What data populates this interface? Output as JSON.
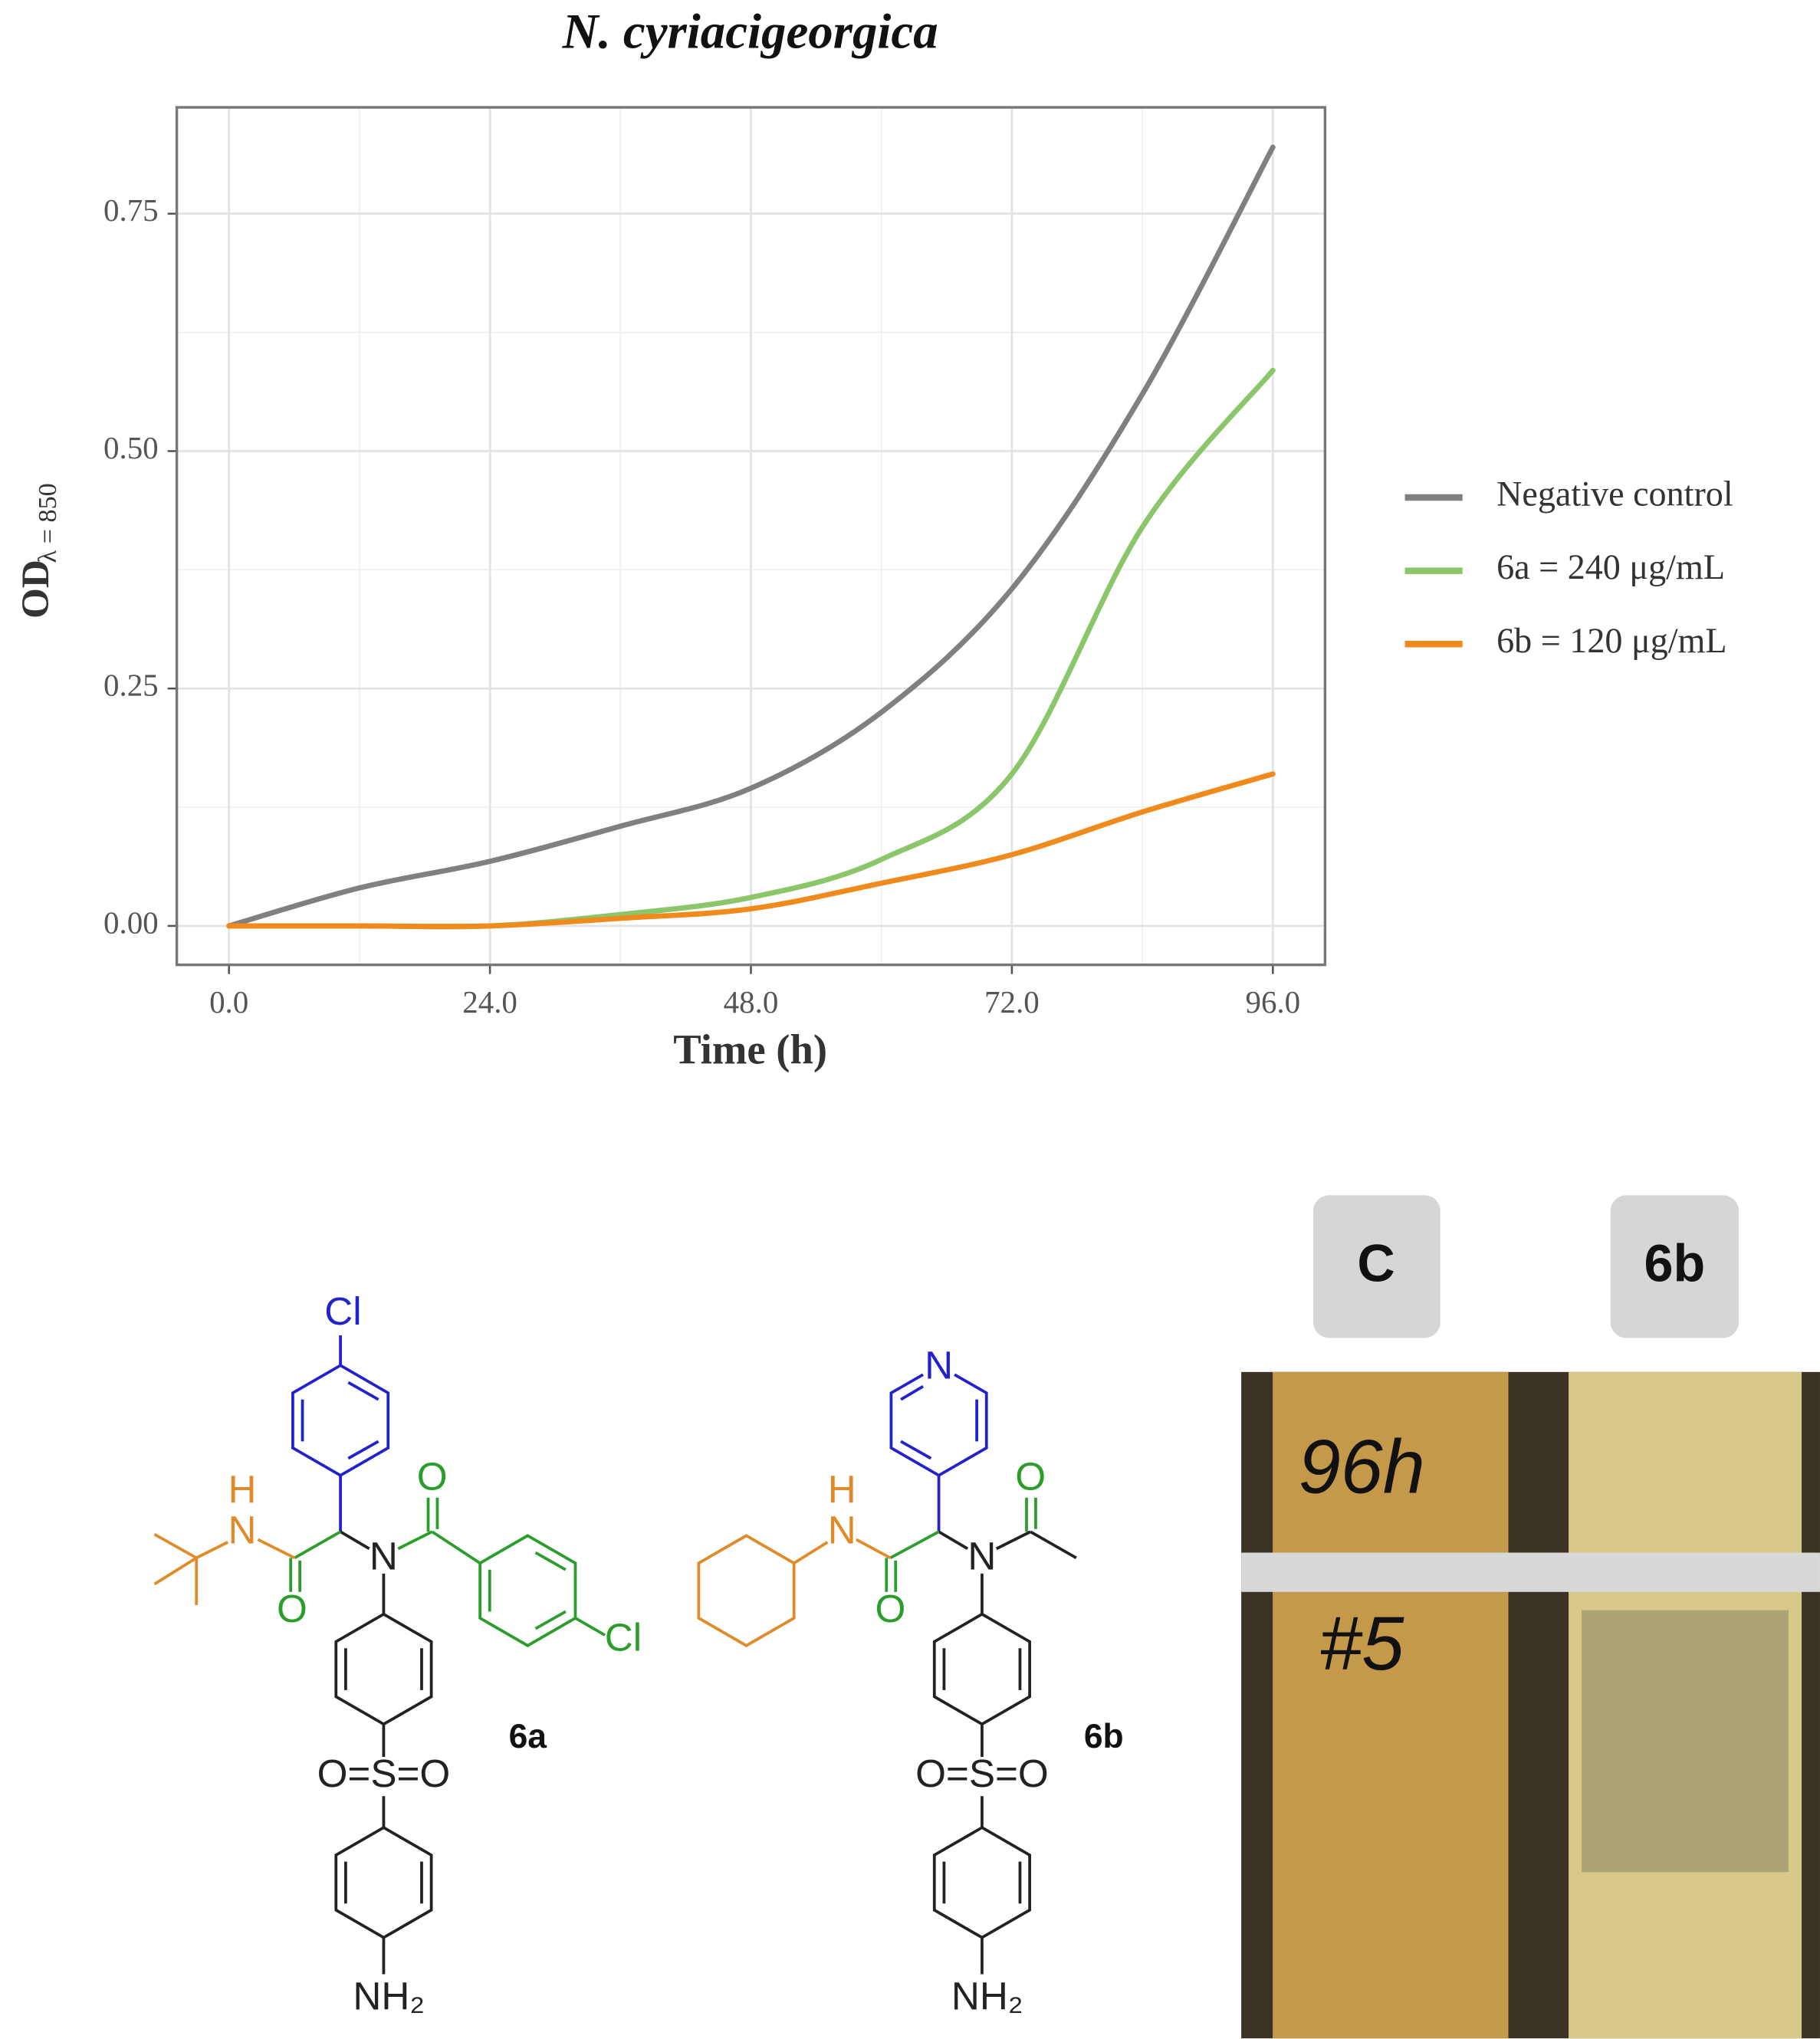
{
  "chart_data": {
    "type": "line",
    "title": "N. cyriacigeorgica",
    "xlabel": "Time (h)",
    "ylabel": "OD",
    "ylabel_subscript": "λ = 850",
    "x": [
      0,
      12,
      24,
      36,
      48,
      60,
      72,
      84,
      96
    ],
    "series": [
      {
        "name": "Negative control",
        "color": "#808080",
        "values": [
          0,
          0.04,
          0.068,
          0.105,
          0.145,
          0.225,
          0.355,
          0.56,
          0.82
        ]
      },
      {
        "name": "6a = 240 μg/mL",
        "color": "#8cc66b",
        "values": [
          0,
          0,
          0,
          0.012,
          0.03,
          0.07,
          0.16,
          0.42,
          0.585
        ]
      },
      {
        "name": "6b = 120 μg/mL",
        "color": "#f08a1c",
        "values": [
          0,
          0,
          0,
          0.008,
          0.018,
          0.045,
          0.075,
          0.12,
          0.16
        ]
      }
    ],
    "xlim": [
      -4.8,
      100.8
    ],
    "ylim": [
      -0.041,
      0.862
    ],
    "xticks": [
      {
        "value": 0,
        "label": "0.0"
      },
      {
        "value": 24,
        "label": "24.0"
      },
      {
        "value": 48,
        "label": "48.0"
      },
      {
        "value": 72,
        "label": "72.0"
      },
      {
        "value": 96,
        "label": "96.0"
      }
    ],
    "yticks": [
      {
        "value": 0,
        "label": "0.00"
      },
      {
        "value": 0.25,
        "label": "0.25"
      },
      {
        "value": 0.5,
        "label": "0.50"
      },
      {
        "value": 0.75,
        "label": "0.75"
      }
    ],
    "grid": true,
    "legend": "right"
  },
  "structures": [
    {
      "label": "6a",
      "atoms": [
        "Cl",
        "H",
        "N",
        "O",
        "N",
        "O",
        "Cl",
        "O=S=O",
        "NH₂"
      ]
    },
    {
      "label": "6b",
      "atoms": [
        "N",
        "H",
        "N",
        "O",
        "N",
        "O",
        "O=S=O",
        "NH₂"
      ]
    }
  ],
  "photo": {
    "labels": [
      "C",
      "6b"
    ],
    "handwriting": [
      "96h",
      "#5"
    ]
  }
}
